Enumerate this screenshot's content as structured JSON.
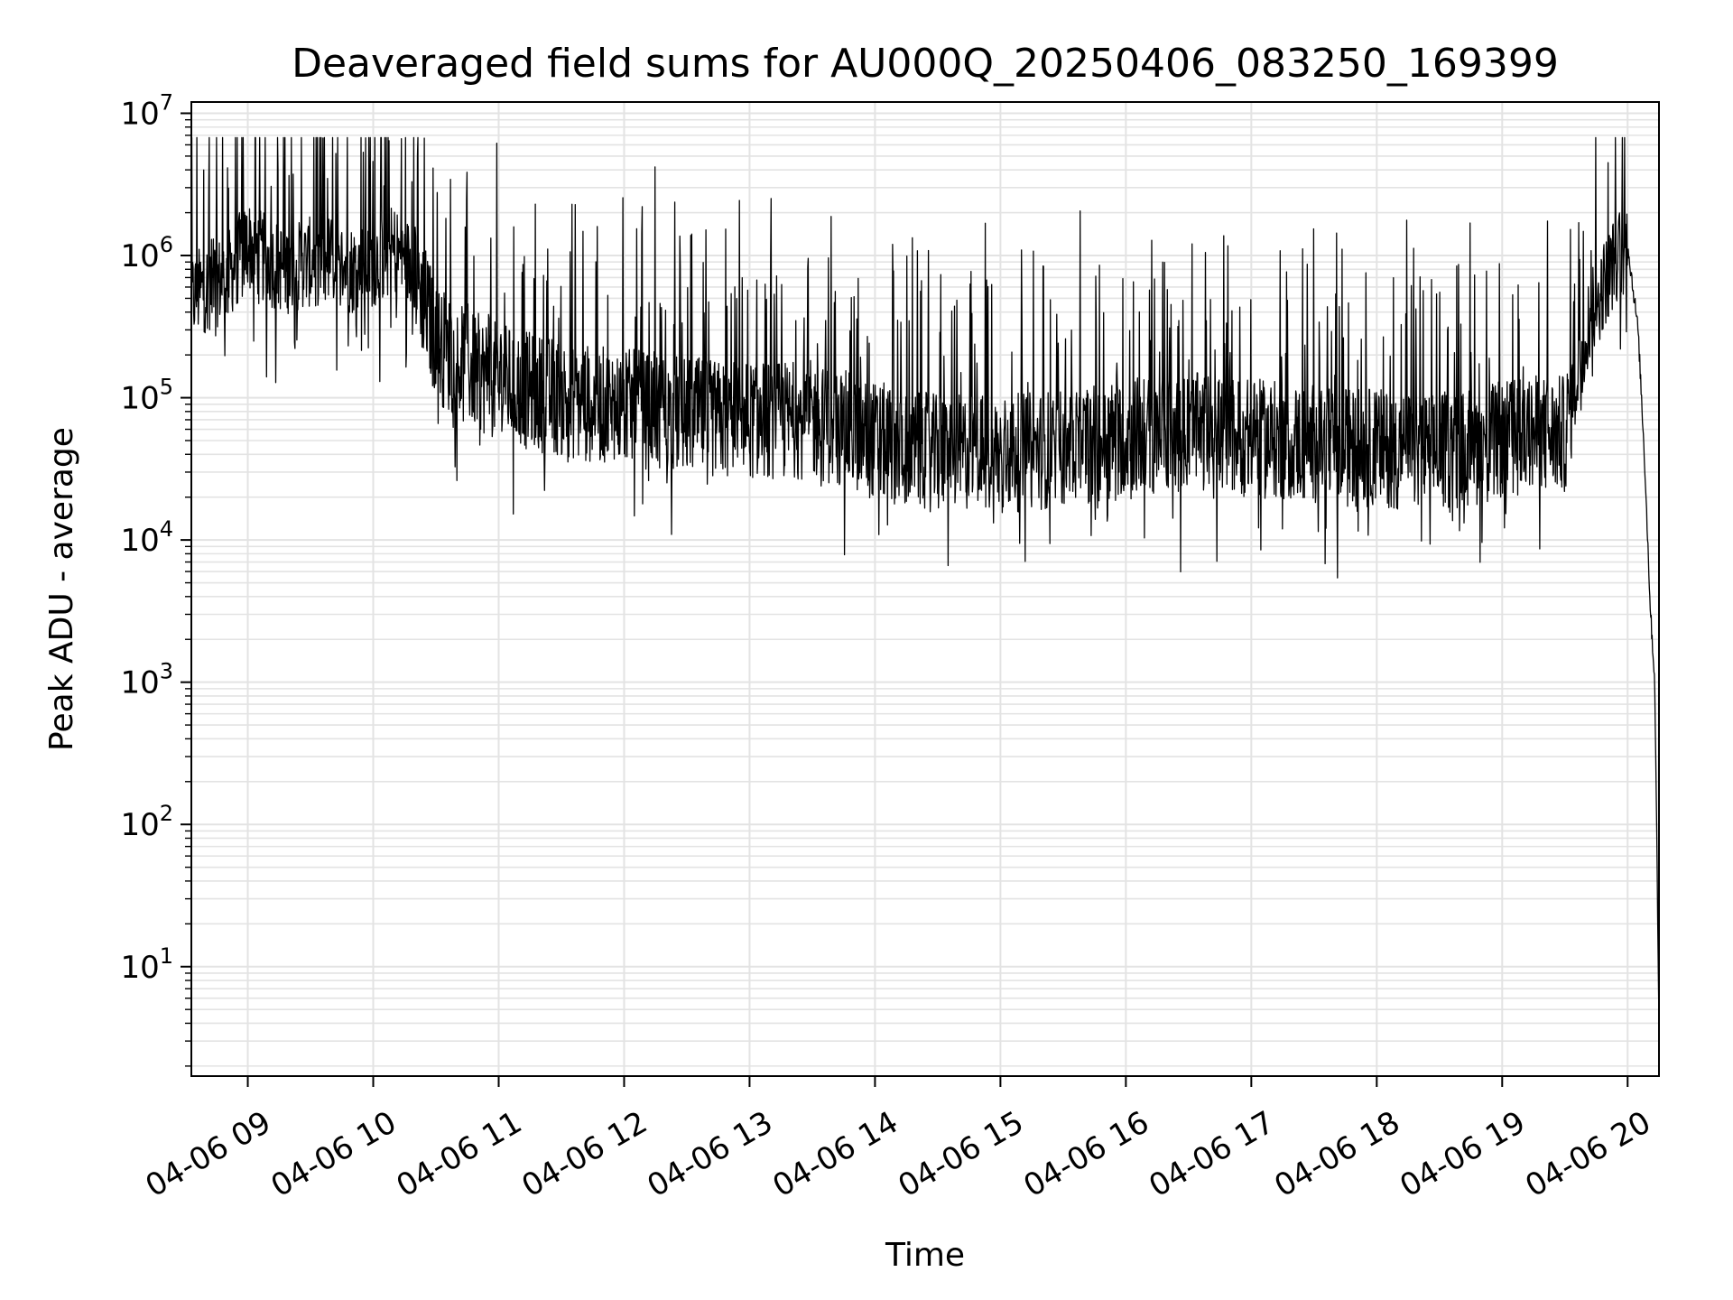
{
  "chart_data": {
    "type": "line",
    "title": "Deaveraged field sums for AU000Q_20250406_083250_169399",
    "xlabel": "Time",
    "ylabel": "Peak ADU - average",
    "yscale": "log",
    "ylim": [
      1.7,
      12000000
    ],
    "xlim": [
      "04-06 08:33",
      "04-06 20:15"
    ],
    "grid": true,
    "line_color": "#000000",
    "grid_color": "#e3e3e3",
    "x_ticks": [
      "04-06 09",
      "04-06 10",
      "04-06 11",
      "04-06 12",
      "04-06 13",
      "04-06 14",
      "04-06 15",
      "04-06 16",
      "04-06 17",
      "04-06 18",
      "04-06 19",
      "04-06 20"
    ],
    "y_ticks": [
      {
        "base": "10",
        "exp": "1",
        "value": 10
      },
      {
        "base": "10",
        "exp": "2",
        "value": 100
      },
      {
        "base": "10",
        "exp": "3",
        "value": 1000
      },
      {
        "base": "10",
        "exp": "4",
        "value": 10000
      },
      {
        "base": "10",
        "exp": "5",
        "value": 100000
      },
      {
        "base": "10",
        "exp": "6",
        "value": 1000000
      },
      {
        "base": "10",
        "exp": "7",
        "value": 10000000
      }
    ],
    "series": [
      {
        "x": [
          "04-06 08:33",
          "04-06 08:40",
          "04-06 08:50",
          "04-06 09:00",
          "04-06 09:10",
          "04-06 09:20",
          "04-06 09:30",
          "04-06 09:40",
          "04-06 09:50",
          "04-06 10:00",
          "04-06 10:10",
          "04-06 10:20",
          "04-06 10:30",
          "04-06 10:40",
          "04-06 10:50",
          "04-06 11:00",
          "04-06 11:15",
          "04-06 11:30",
          "04-06 11:45",
          "04-06 12:00",
          "04-06 12:15",
          "04-06 12:30",
          "04-06 12:45",
          "04-06 13:00",
          "04-06 13:15",
          "04-06 13:30",
          "04-06 13:45",
          "04-06 14:00",
          "04-06 14:15",
          "04-06 14:30",
          "04-06 14:45",
          "04-06 15:00",
          "04-06 15:15",
          "04-06 15:30",
          "04-06 15:45",
          "04-06 16:00",
          "04-06 16:15",
          "04-06 16:30",
          "04-06 16:45",
          "04-06 17:00",
          "04-06 17:15",
          "04-06 17:30",
          "04-06 17:45",
          "04-06 18:00",
          "04-06 18:15",
          "04-06 18:30",
          "04-06 18:45",
          "04-06 19:00",
          "04-06 19:15",
          "04-06 19:30",
          "04-06 19:40",
          "04-06 19:50",
          "04-06 19:55",
          "04-06 20:00",
          "04-06 20:05",
          "04-06 20:08",
          "04-06 20:11",
          "04-06 20:13",
          "04-06 20:15"
        ],
        "values": [
          500000,
          600000,
          700000,
          1200000,
          900000,
          800000,
          900000,
          950000,
          800000,
          900000,
          1100000,
          800000,
          250000,
          180000,
          150000,
          130000,
          110000,
          100000,
          90000,
          85000,
          80000,
          75000,
          70000,
          70000,
          70000,
          70000,
          60000,
          50000,
          45000,
          40000,
          42000,
          40000,
          42000,
          45000,
          48000,
          55000,
          55000,
          58000,
          55000,
          52000,
          50000,
          48000,
          45000,
          45000,
          42000,
          42000,
          45000,
          50000,
          55000,
          55000,
          300000,
          700000,
          1000000,
          1200000,
          300000,
          40000,
          3000,
          1000,
          4
        ]
      }
    ]
  }
}
